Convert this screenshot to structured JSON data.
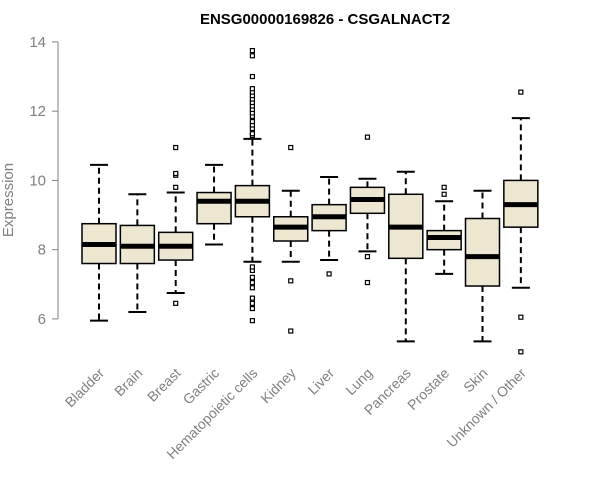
{
  "chart_data": {
    "type": "boxplot",
    "title": "ENSG00000169826 - CSGALNACT2",
    "xlabel": "",
    "ylabel": "Expression",
    "ylim": [
      4.9,
      14.2
    ],
    "yticks": [
      6,
      8,
      10,
      12,
      14
    ],
    "grid": false,
    "box_fill": "#ede6d0",
    "categories": [
      "Bladder",
      "Brain",
      "Breast",
      "Gastric",
      "Hematopoietic cells",
      "Kidney",
      "Liver",
      "Lung",
      "Pancreas",
      "Prostate",
      "Skin",
      "Unknown / Other"
    ],
    "boxes": [
      {
        "category": "Bladder",
        "min": 5.95,
        "q1": 7.6,
        "median": 8.15,
        "q3": 8.75,
        "max": 10.45,
        "outliers": []
      },
      {
        "category": "Brain",
        "min": 6.2,
        "q1": 7.6,
        "median": 8.1,
        "q3": 8.7,
        "max": 9.6,
        "outliers": []
      },
      {
        "category": "Breast",
        "min": 6.75,
        "q1": 7.7,
        "median": 8.1,
        "q3": 8.5,
        "max": 9.65,
        "outliers": [
          6.45,
          9.8,
          10.15,
          10.2,
          10.95
        ]
      },
      {
        "category": "Gastric",
        "min": 8.15,
        "q1": 8.75,
        "median": 9.4,
        "q3": 9.65,
        "max": 10.45,
        "outliers": []
      },
      {
        "category": "Hematopoietic cells",
        "min": 7.65,
        "q1": 8.95,
        "median": 9.4,
        "q3": 9.85,
        "max": 11.2,
        "outliers": [
          5.95,
          6.3,
          6.45,
          6.6,
          6.9,
          7.05,
          7.2,
          7.4,
          7.5,
          11.3,
          11.35,
          11.5,
          11.6,
          11.7,
          11.85,
          11.95,
          12.05,
          12.15,
          12.25,
          12.35,
          12.45,
          12.55,
          12.65,
          13.0,
          13.6,
          13.75
        ]
      },
      {
        "category": "Kidney",
        "min": 7.65,
        "q1": 8.25,
        "median": 8.65,
        "q3": 8.95,
        "max": 9.7,
        "outliers": [
          5.65,
          7.1,
          10.95
        ]
      },
      {
        "category": "Liver",
        "min": 7.7,
        "q1": 8.55,
        "median": 8.95,
        "q3": 9.3,
        "max": 10.1,
        "outliers": [
          7.3
        ]
      },
      {
        "category": "Lung",
        "min": 7.95,
        "q1": 9.05,
        "median": 9.45,
        "q3": 9.8,
        "max": 10.05,
        "outliers": [
          7.05,
          7.8,
          11.25
        ]
      },
      {
        "category": "Pancreas",
        "min": 5.35,
        "q1": 7.75,
        "median": 8.65,
        "q3": 9.6,
        "max": 10.25,
        "outliers": []
      },
      {
        "category": "Prostate",
        "min": 7.3,
        "q1": 8.0,
        "median": 8.35,
        "q3": 8.55,
        "max": 9.4,
        "outliers": [
          9.6,
          9.8
        ]
      },
      {
        "category": "Skin",
        "min": 5.35,
        "q1": 6.95,
        "median": 7.8,
        "q3": 8.9,
        "max": 9.7,
        "outliers": []
      },
      {
        "category": "Unknown / Other",
        "min": 6.9,
        "q1": 8.65,
        "median": 9.3,
        "q3": 10.0,
        "max": 11.8,
        "outliers": [
          5.05,
          6.05,
          12.55
        ]
      }
    ]
  }
}
